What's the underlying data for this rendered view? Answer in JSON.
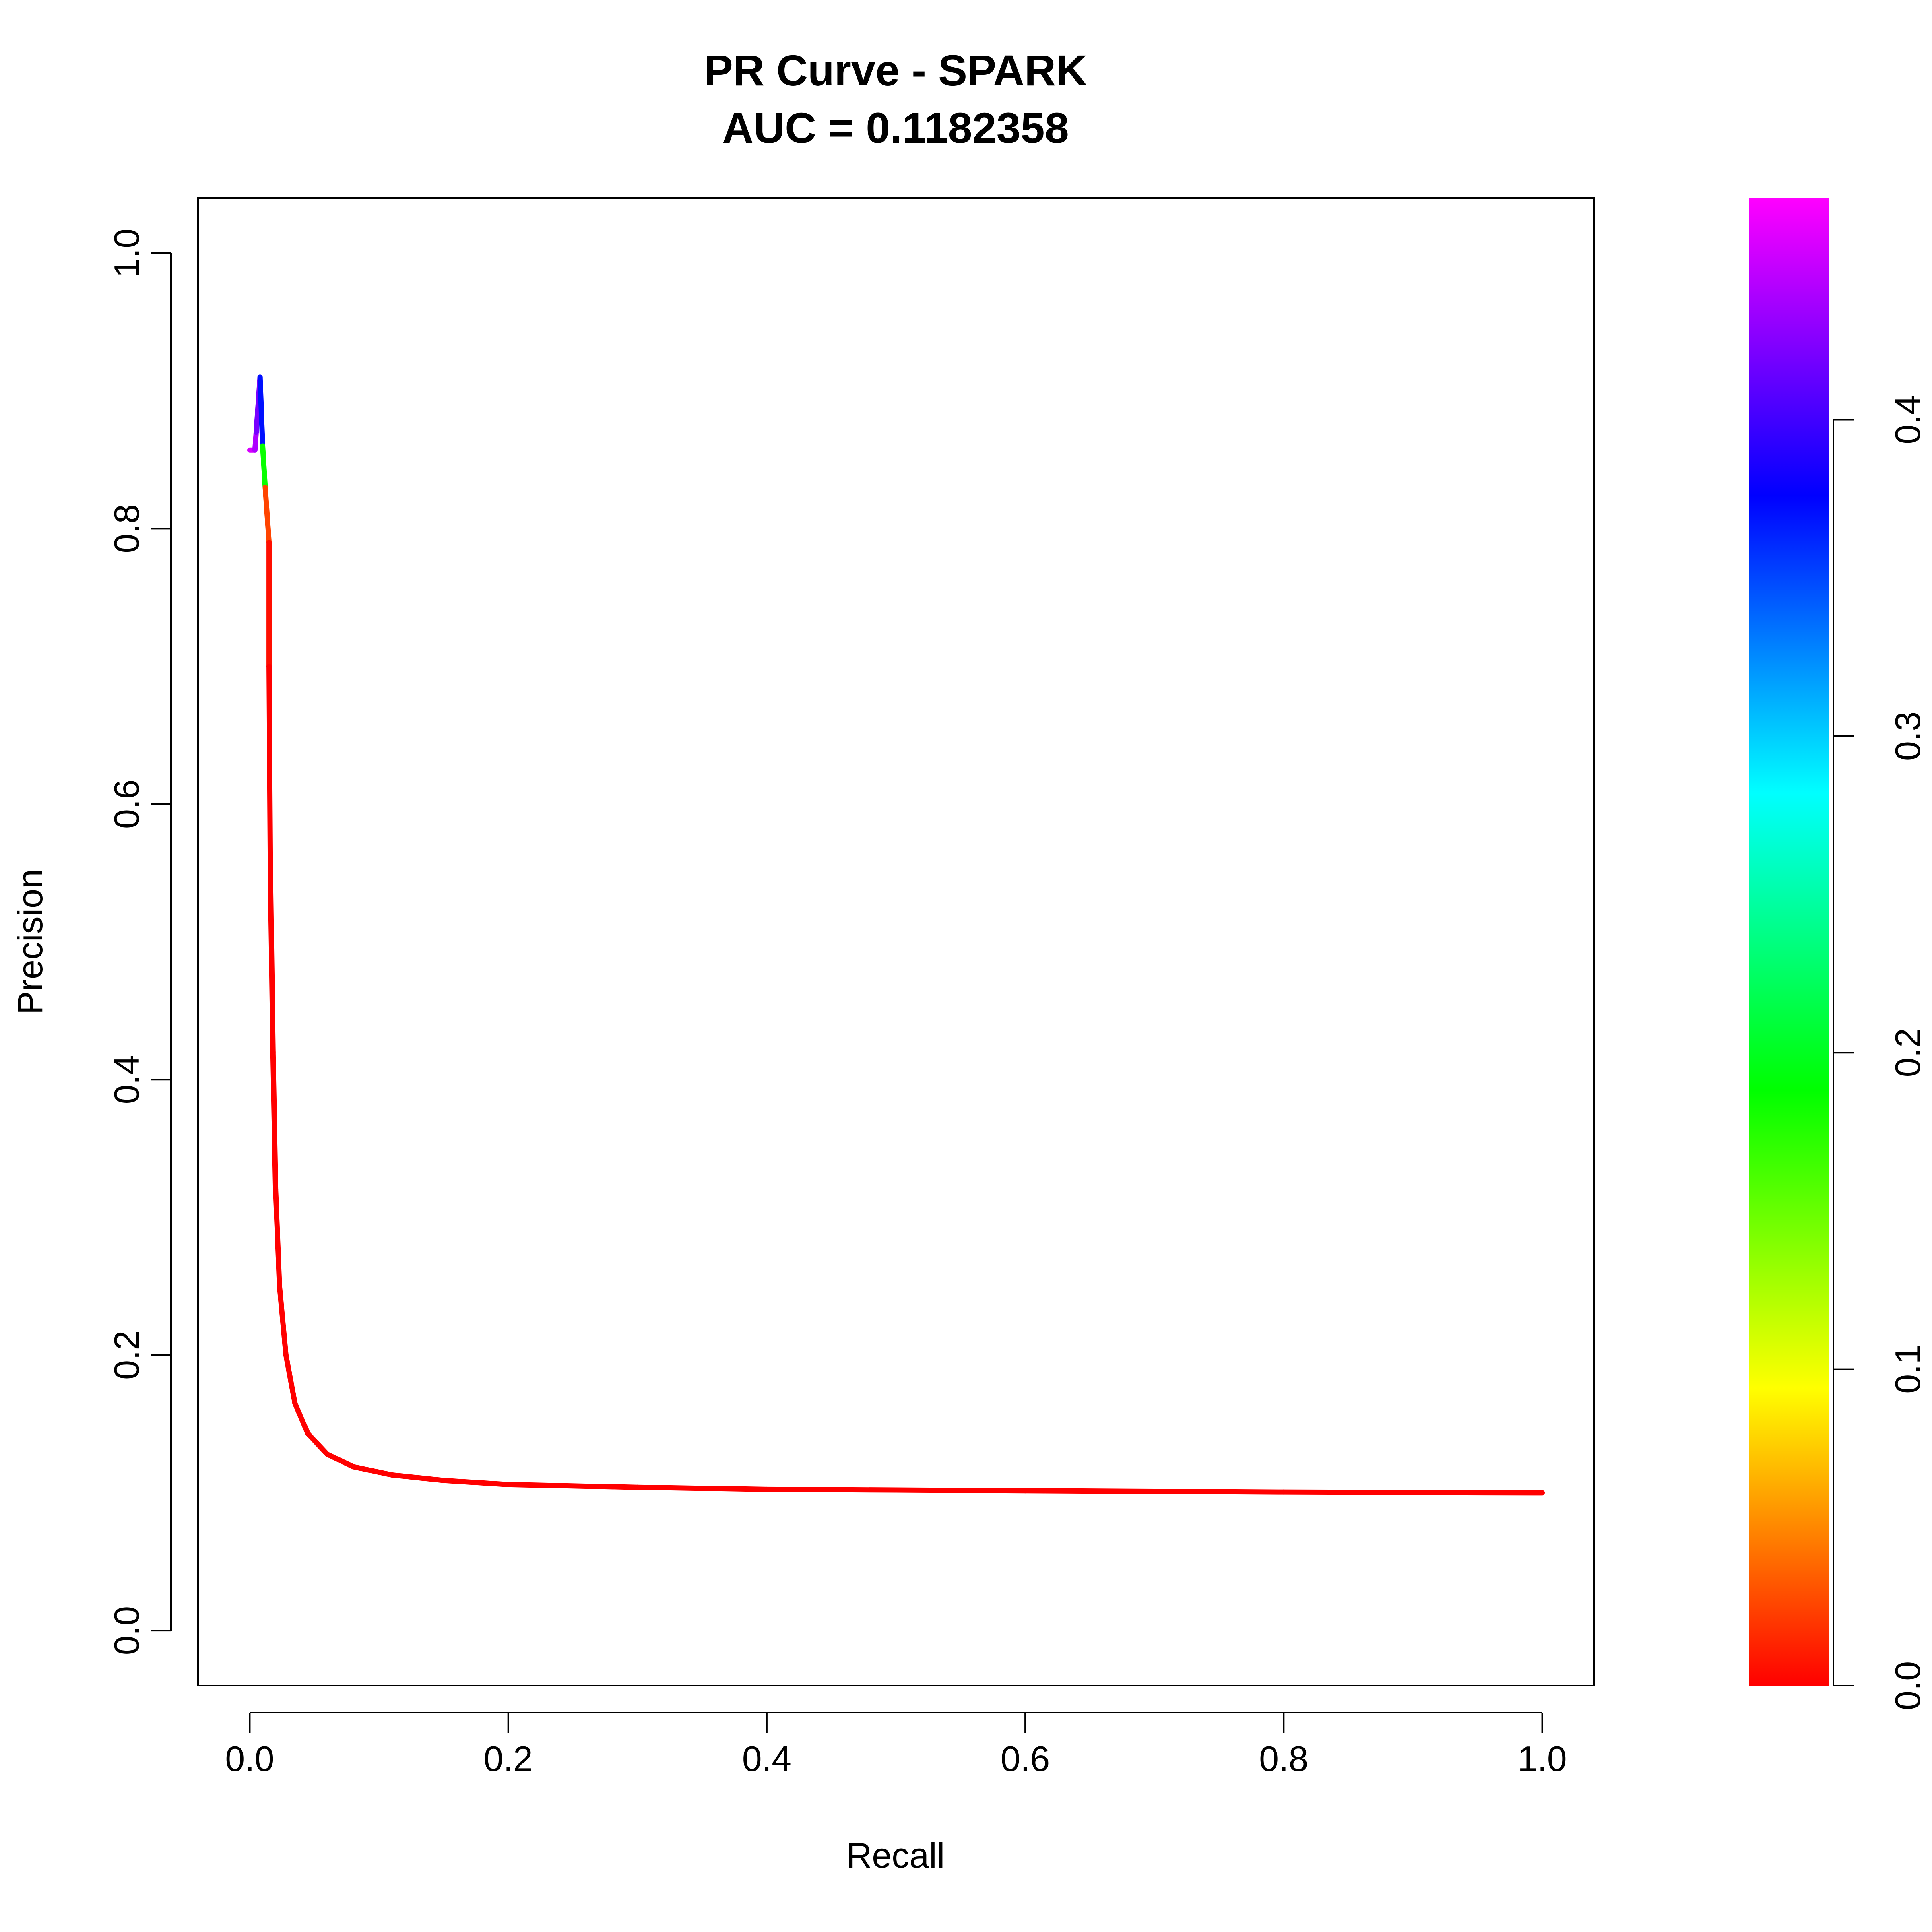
{
  "chart_data": {
    "type": "line",
    "title": "PR Curve - SPARK",
    "subtitle": "AUC = 0.1182358",
    "xlabel": "Recall",
    "ylabel": "Precision",
    "xlim": [
      -0.04,
      1.04
    ],
    "ylim": [
      -0.04,
      1.04
    ],
    "x_ticks": [
      0.0,
      0.2,
      0.4,
      0.6,
      0.8,
      1.0
    ],
    "x_tick_labels": [
      "0.0",
      "0.2",
      "0.4",
      "0.6",
      "0.8",
      "1.0"
    ],
    "y_ticks": [
      0.0,
      0.2,
      0.4,
      0.6,
      0.8,
      1.0
    ],
    "y_tick_labels": [
      "0.0",
      "0.2",
      "0.4",
      "0.6",
      "0.8",
      "1.0"
    ],
    "grid": false,
    "line_color_scale": "rainbow, colored by threshold",
    "points": [
      {
        "recall": 0.0,
        "precision": 0.857,
        "threshold": 0.46
      },
      {
        "recall": 0.004,
        "precision": 0.857,
        "threshold": 0.45
      },
      {
        "recall": 0.005,
        "precision": 0.87,
        "threshold": 0.43
      },
      {
        "recall": 0.008,
        "precision": 0.91,
        "threshold": 0.41
      },
      {
        "recall": 0.01,
        "precision": 0.86,
        "threshold": 0.33
      },
      {
        "recall": 0.012,
        "precision": 0.83,
        "threshold": 0.04
      },
      {
        "recall": 0.015,
        "precision": 0.79,
        "threshold": 0.01
      },
      {
        "recall": 0.015,
        "precision": 0.7,
        "threshold": 0.0
      },
      {
        "recall": 0.016,
        "precision": 0.55,
        "threshold": 0.0
      },
      {
        "recall": 0.018,
        "precision": 0.42,
        "threshold": 0.0
      },
      {
        "recall": 0.02,
        "precision": 0.32,
        "threshold": 0.0
      },
      {
        "recall": 0.023,
        "precision": 0.25,
        "threshold": 0.0
      },
      {
        "recall": 0.028,
        "precision": 0.2,
        "threshold": 0.0
      },
      {
        "recall": 0.035,
        "precision": 0.165,
        "threshold": 0.0
      },
      {
        "recall": 0.045,
        "precision": 0.143,
        "threshold": 0.0
      },
      {
        "recall": 0.06,
        "precision": 0.128,
        "threshold": 0.0
      },
      {
        "recall": 0.08,
        "precision": 0.119,
        "threshold": 0.0
      },
      {
        "recall": 0.11,
        "precision": 0.113,
        "threshold": 0.0
      },
      {
        "recall": 0.15,
        "precision": 0.109,
        "threshold": 0.0
      },
      {
        "recall": 0.2,
        "precision": 0.106,
        "threshold": 0.0
      },
      {
        "recall": 0.3,
        "precision": 0.104,
        "threshold": 0.0
      },
      {
        "recall": 0.4,
        "precision": 0.1025,
        "threshold": 0.0
      },
      {
        "recall": 0.5,
        "precision": 0.102,
        "threshold": 0.0
      },
      {
        "recall": 0.6,
        "precision": 0.1015,
        "threshold": 0.0
      },
      {
        "recall": 0.7,
        "precision": 0.101,
        "threshold": 0.0
      },
      {
        "recall": 0.8,
        "precision": 0.1005,
        "threshold": 0.0
      },
      {
        "recall": 0.9,
        "precision": 0.1002,
        "threshold": 0.0
      },
      {
        "recall": 1.0,
        "precision": 0.1,
        "threshold": 0.0
      }
    ],
    "colorbar": {
      "range": [
        0.0,
        0.47
      ],
      "ticks": [
        0.0,
        0.1,
        0.2,
        0.3,
        0.4
      ],
      "tick_labels": [
        "0.0",
        "0.1",
        "0.2",
        "0.3",
        "0.4"
      ],
      "colors": [
        "#FF0000",
        "#FFFF00",
        "#00FF00",
        "#00FFFF",
        "#0000FF",
        "#FF00FF"
      ]
    }
  }
}
